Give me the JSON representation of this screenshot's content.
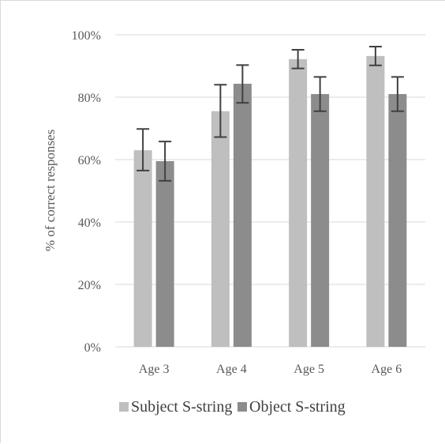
{
  "chart_data": {
    "type": "bar",
    "categories": [
      "Age 3",
      "Age 4",
      "Age 5",
      "Age 6"
    ],
    "series": [
      {
        "name": "Subject S-string",
        "values": [
          63,
          75.5,
          92.2,
          93.2
        ],
        "error_low": [
          56.5,
          67.2,
          89.2,
          90.2
        ],
        "error_high": [
          69.8,
          84,
          95.2,
          96.2
        ],
        "color": "#bfbfbf"
      },
      {
        "name": "Object S-string",
        "values": [
          59.5,
          84.3,
          81,
          81
        ],
        "error_low": [
          53.2,
          78.2,
          75.5,
          75.5
        ],
        "error_high": [
          65.8,
          90.3,
          86.5,
          86.5
        ],
        "color": "#8c8c8c"
      }
    ],
    "y_ticks": [
      "0%",
      "20%",
      "40%",
      "60%",
      "80%",
      "100%"
    ],
    "ylabel": "% of correct responses",
    "xlabel": "",
    "title": "",
    "ylim": [
      0,
      100
    ],
    "grid": true,
    "legend_position": "bottom",
    "gridline_color": "#d9d9d9",
    "error_bar_color": "#404040"
  }
}
